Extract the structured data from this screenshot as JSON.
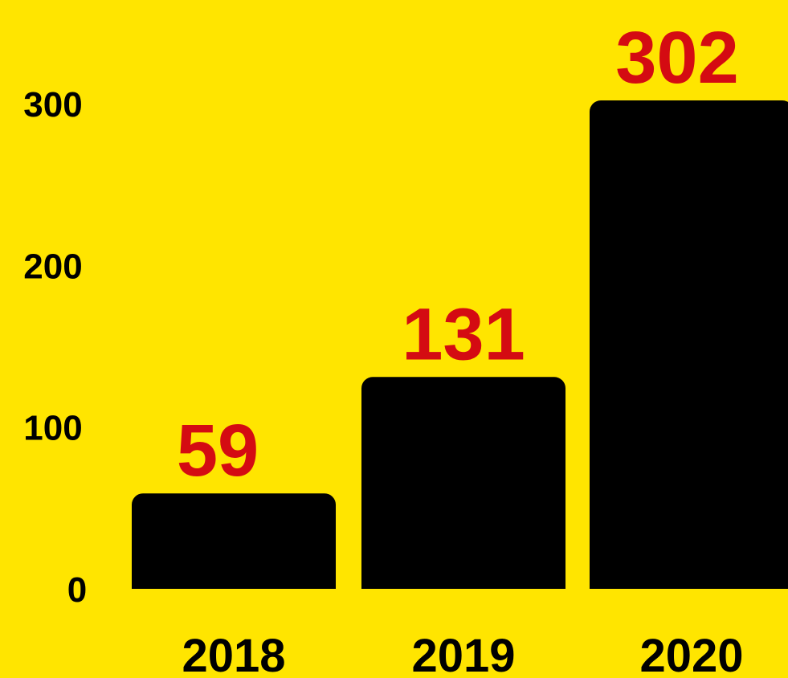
{
  "chart_data": {
    "type": "bar",
    "title": "",
    "xlabel": "",
    "ylabel": "",
    "categories": [
      "2018",
      "2019",
      "2020"
    ],
    "values": [
      59,
      131,
      302
    ],
    "data_labels": [
      "59",
      "131",
      "302"
    ],
    "yticks": [
      "0",
      "100",
      "200",
      "300"
    ],
    "ylim": [
      0,
      302
    ],
    "grid": false,
    "legend": "none",
    "colors": {
      "background": "#FFE500",
      "bar": "#000000",
      "data_label": "#D40B12",
      "tick_label": "#000000"
    }
  }
}
